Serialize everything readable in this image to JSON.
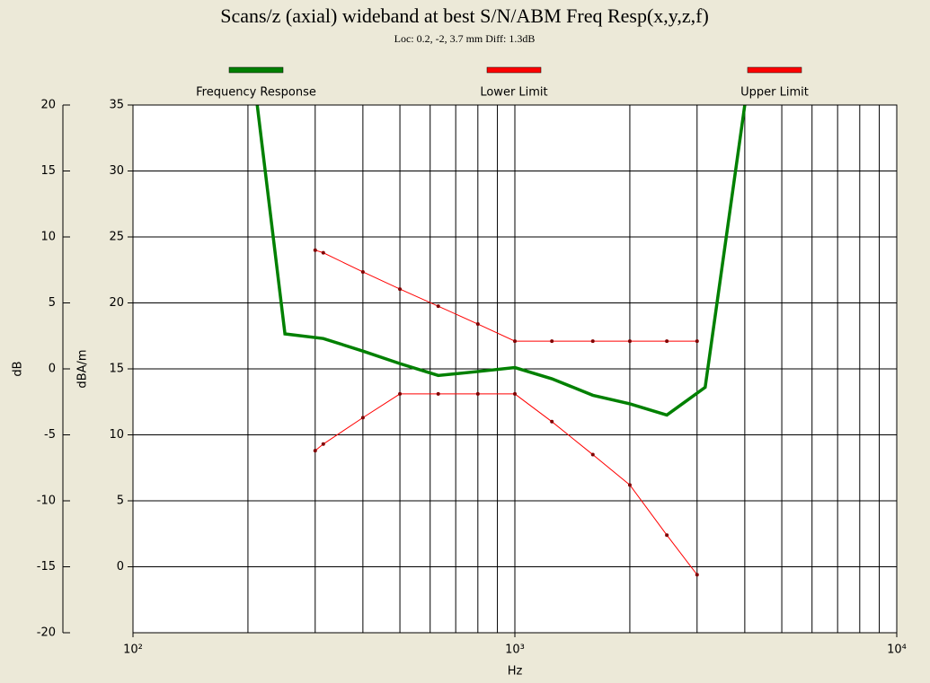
{
  "chart_data": {
    "type": "line",
    "title": "Scans/z (axial) wideband at best S/N/ABM Freq Resp(x,y,z,f)",
    "subtitle": "Loc: 0.2, -2, 3.7 mm Diff: 1.3dB",
    "xlabel": "Hz",
    "ylabel": "dB",
    "y2label": "dBA/m",
    "xscale": "log",
    "grid": true,
    "xlim": [
      100,
      10000
    ],
    "xticks": [
      {
        "value": 100,
        "label": "10²"
      },
      {
        "value": 1000,
        "label": "10³"
      },
      {
        "value": 10000,
        "label": "10⁴"
      }
    ],
    "xgrid": [
      200,
      300,
      400,
      500,
      600,
      700,
      800,
      900,
      1000,
      2000,
      3000,
      4000,
      5000,
      6000,
      7000,
      8000,
      9000
    ],
    "ylim": [
      -20,
      20
    ],
    "yticks": [
      -20,
      -15,
      -10,
      -5,
      0,
      5,
      10,
      15,
      20
    ],
    "y2lim": [
      -5,
      35
    ],
    "y2ticks": [
      0,
      5,
      10,
      15,
      20,
      25,
      30,
      35
    ],
    "legend": "top",
    "series": [
      {
        "name": "Frequency Response",
        "color": "#008000",
        "x": [
          200,
          250,
          315,
          400,
          500,
          630,
          800,
          1000,
          1250,
          1600,
          2000,
          2500,
          3150,
          4000
        ],
        "values": [
          25.8,
          2.65,
          2.3,
          1.35,
          0.4,
          -0.5,
          -0.2,
          0.1,
          -0.75,
          -2.0,
          -2.65,
          -3.5,
          -1.4,
          20
        ]
      },
      {
        "name": "Lower Limit",
        "color": "#ff0000",
        "x": [
          300,
          315,
          400,
          500,
          630,
          800,
          1000,
          1250,
          1600,
          2000,
          2500,
          3000
        ],
        "values": [
          -6.2,
          -5.7,
          -3.7,
          -1.9,
          -1.9,
          -1.9,
          -1.9,
          -4.0,
          -6.5,
          -8.8,
          -12.6,
          -15.6
        ]
      },
      {
        "name": "Upper Limit",
        "color": "#ff0000",
        "x": [
          300,
          315,
          400,
          500,
          630,
          800,
          1000,
          1250,
          1600,
          2000,
          2500,
          3000
        ],
        "values": [
          9.0,
          8.8,
          7.35,
          6.05,
          4.75,
          3.4,
          2.1,
          2.1,
          2.1,
          2.1,
          2.1,
          2.1
        ]
      }
    ]
  }
}
